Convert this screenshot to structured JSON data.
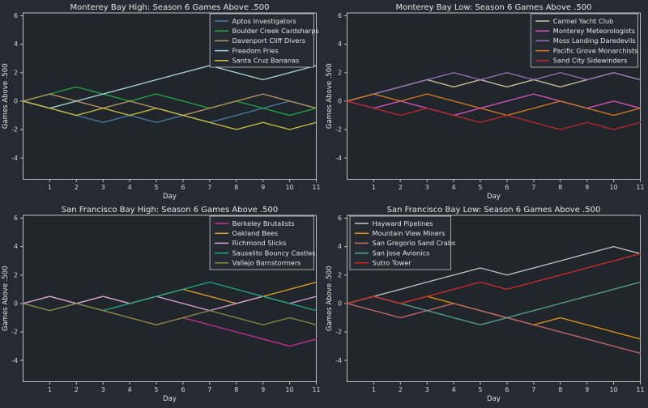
{
  "figure": {
    "background": "#262b33",
    "axes_background": "#21252c",
    "spine_color": "#bfbfbf",
    "text_color": "#e3e3e3",
    "tick_text_color": "#d9d9d9"
  },
  "chart_data": [
    {
      "type": "line",
      "title": "Monterey Bay High: Season 6 Games Above .500",
      "xlabel": "Day",
      "ylabel": "Games Above .500",
      "x": [
        0,
        1,
        2,
        3,
        4,
        5,
        6,
        7,
        8,
        9,
        10,
        11
      ],
      "xticks": [
        1,
        2,
        3,
        4,
        5,
        6,
        7,
        8,
        9,
        10,
        11
      ],
      "yticks": [
        -4,
        -2,
        0,
        2,
        4,
        6
      ],
      "xlim": [
        0,
        11
      ],
      "ylim": [
        -5.5,
        6.2
      ],
      "grid": false,
      "legend_position": "upper-right",
      "series": [
        {
          "name": "Aptos Investigators",
          "color": "#4a7dab",
          "values": [
            0,
            -0.5,
            -1,
            -1.5,
            -1,
            -1.5,
            -1,
            -1.5,
            -1,
            -0.5,
            0,
            -0.5
          ]
        },
        {
          "name": "Boulder Creek Cardsharps",
          "color": "#22a844",
          "values": [
            0,
            0.5,
            1,
            0.5,
            0,
            0.5,
            0,
            -0.5,
            0,
            -0.5,
            -1,
            -0.5
          ]
        },
        {
          "name": "Davenport Cliff Divers",
          "color": "#bb9962",
          "values": [
            0,
            0.5,
            0,
            -0.5,
            0,
            -0.5,
            -1,
            -0.5,
            0,
            0.5,
            0,
            -0.5
          ]
        },
        {
          "name": "Freedom Fries",
          "color": "#a7d9d6",
          "values": [
            0,
            -0.5,
            0,
            0.5,
            1,
            1.5,
            2,
            2.5,
            2,
            1.5,
            2,
            2.5
          ]
        },
        {
          "name": "Santa Cruz Bananas",
          "color": "#cec23f",
          "values": [
            0,
            -0.5,
            -1,
            -0.5,
            -1,
            -0.5,
            -1,
            -1.5,
            -2,
            -1.5,
            -2,
            -1.5
          ]
        }
      ]
    },
    {
      "type": "line",
      "title": "Monterey Bay Low: Season 6 Games Above .500",
      "xlabel": "Day",
      "ylabel": "Games Above .500",
      "x": [
        0,
        1,
        2,
        3,
        4,
        5,
        6,
        7,
        8,
        9,
        10,
        11
      ],
      "xticks": [
        1,
        2,
        3,
        4,
        5,
        6,
        7,
        8,
        9,
        10,
        11
      ],
      "yticks": [
        -4,
        -2,
        0,
        2,
        4,
        6
      ],
      "xlim": [
        0,
        11
      ],
      "ylim": [
        -5.5,
        6.2
      ],
      "grid": false,
      "legend_position": "upper-right",
      "series": [
        {
          "name": "Carmel Yacht Club",
          "color": "#d4c59e",
          "values": [
            0,
            0.5,
            1,
            1.5,
            1,
            1.5,
            1,
            1.5,
            1,
            1.5,
            2,
            1.5
          ]
        },
        {
          "name": "Monterey Meteorologists",
          "color": "#e052c2",
          "values": [
            0,
            -0.5,
            0,
            -0.5,
            -1,
            -0.5,
            0,
            0.5,
            0,
            -0.5,
            0,
            -0.5
          ]
        },
        {
          "name": "Moss Landing Daredevils",
          "color": "#9b72b9",
          "values": [
            0,
            0.5,
            1,
            1.5,
            2,
            1.5,
            2,
            1.5,
            2,
            1.5,
            2,
            1.5
          ]
        },
        {
          "name": "Pacific Grove Monarchists",
          "color": "#d97b23",
          "values": [
            0,
            0.5,
            0,
            0.5,
            0,
            -0.5,
            -1,
            -0.5,
            0,
            -0.5,
            -1,
            -0.5
          ]
        },
        {
          "name": "Sand City Sidewinders",
          "color": "#bd2a2a",
          "values": [
            0,
            -0.5,
            -1,
            -0.5,
            -1,
            -1.5,
            -1,
            -1.5,
            -2,
            -1.5,
            -2,
            -1.5
          ]
        }
      ]
    },
    {
      "type": "line",
      "title": "San Francisco Bay High: Season 6 Games Above .500",
      "xlabel": "Day",
      "ylabel": "Games Above .500",
      "x": [
        0,
        1,
        2,
        3,
        4,
        5,
        6,
        7,
        8,
        9,
        10,
        11
      ],
      "xticks": [
        1,
        2,
        3,
        4,
        5,
        6,
        7,
        8,
        9,
        10,
        11
      ],
      "yticks": [
        -4,
        -2,
        0,
        2,
        4,
        6
      ],
      "xlim": [
        0,
        11
      ],
      "ylim": [
        -5.5,
        6.2
      ],
      "grid": false,
      "legend_position": "upper-right",
      "series": [
        {
          "name": "Berkeley Brutalists",
          "color": "#c72f96",
          "values": [
            0,
            -0.5,
            0,
            -0.5,
            -1,
            -1.5,
            -1,
            -1.5,
            -2,
            -2.5,
            -3,
            -2.5
          ]
        },
        {
          "name": "Oakland Bees",
          "color": "#e3a32a",
          "values": [
            0,
            0.5,
            0,
            0.5,
            0,
            0.5,
            1,
            0.5,
            0,
            0.5,
            1,
            1.5
          ]
        },
        {
          "name": "Richmond Slicks",
          "color": "#d8a5d8",
          "values": [
            0,
            0.5,
            0,
            0.5,
            0,
            0.5,
            0,
            -0.5,
            0,
            0.5,
            0,
            0.5
          ]
        },
        {
          "name": "Sausalito Bouncy Castles",
          "color": "#1fa87e",
          "values": [
            0,
            -0.5,
            0,
            -0.5,
            0,
            0.5,
            1,
            1.5,
            1,
            0.5,
            0,
            -0.5
          ]
        },
        {
          "name": "Vallejo Barnstormers",
          "color": "#8b8b40",
          "values": [
            0,
            -0.5,
            0,
            -0.5,
            -1,
            -1.5,
            -1,
            -0.5,
            -1,
            -1.5,
            -1,
            -1.5
          ]
        }
      ]
    },
    {
      "type": "line",
      "title": "San Francisco Bay Low: Season 6 Games Above .500",
      "xlabel": "Day",
      "ylabel": "Games Above .500",
      "x": [
        0,
        1,
        2,
        3,
        4,
        5,
        6,
        7,
        8,
        9,
        10,
        11
      ],
      "xticks": [
        1,
        2,
        3,
        4,
        5,
        6,
        7,
        8,
        9,
        10,
        11
      ],
      "yticks": [
        -4,
        -2,
        0,
        2,
        4,
        6
      ],
      "xlim": [
        0,
        11
      ],
      "ylim": [
        -5.5,
        6.2
      ],
      "grid": false,
      "legend_position": "upper-left",
      "series": [
        {
          "name": "Hayward Pipelines",
          "color": "#c3c3c3",
          "values": [
            0,
            0.5,
            1,
            1.5,
            2,
            2.5,
            2,
            2.5,
            3,
            3.5,
            4,
            3.5
          ]
        },
        {
          "name": "Mountain View Miners",
          "color": "#e2940f",
          "values": [
            0,
            0.5,
            0,
            0.5,
            0,
            -0.5,
            -1,
            -1.5,
            -1,
            -1.5,
            -2,
            -2.5
          ]
        },
        {
          "name": "San Gregorio Sand Crabs",
          "color": "#c96a6a",
          "values": [
            0,
            -0.5,
            -1,
            -0.5,
            0,
            -0.5,
            -1,
            -1.5,
            -2,
            -2.5,
            -3,
            -3.5
          ]
        },
        {
          "name": "San Jose Avionics",
          "color": "#57a68d",
          "values": [
            0,
            0.5,
            0,
            -0.5,
            -1,
            -1.5,
            -1,
            -0.5,
            0,
            0.5,
            1,
            1.5
          ]
        },
        {
          "name": "Sutro Tower",
          "color": "#d42a2a",
          "values": [
            0,
            0.5,
            0,
            0.5,
            1,
            1.5,
            1,
            1.5,
            2,
            2.5,
            3,
            3.5
          ]
        }
      ]
    }
  ]
}
